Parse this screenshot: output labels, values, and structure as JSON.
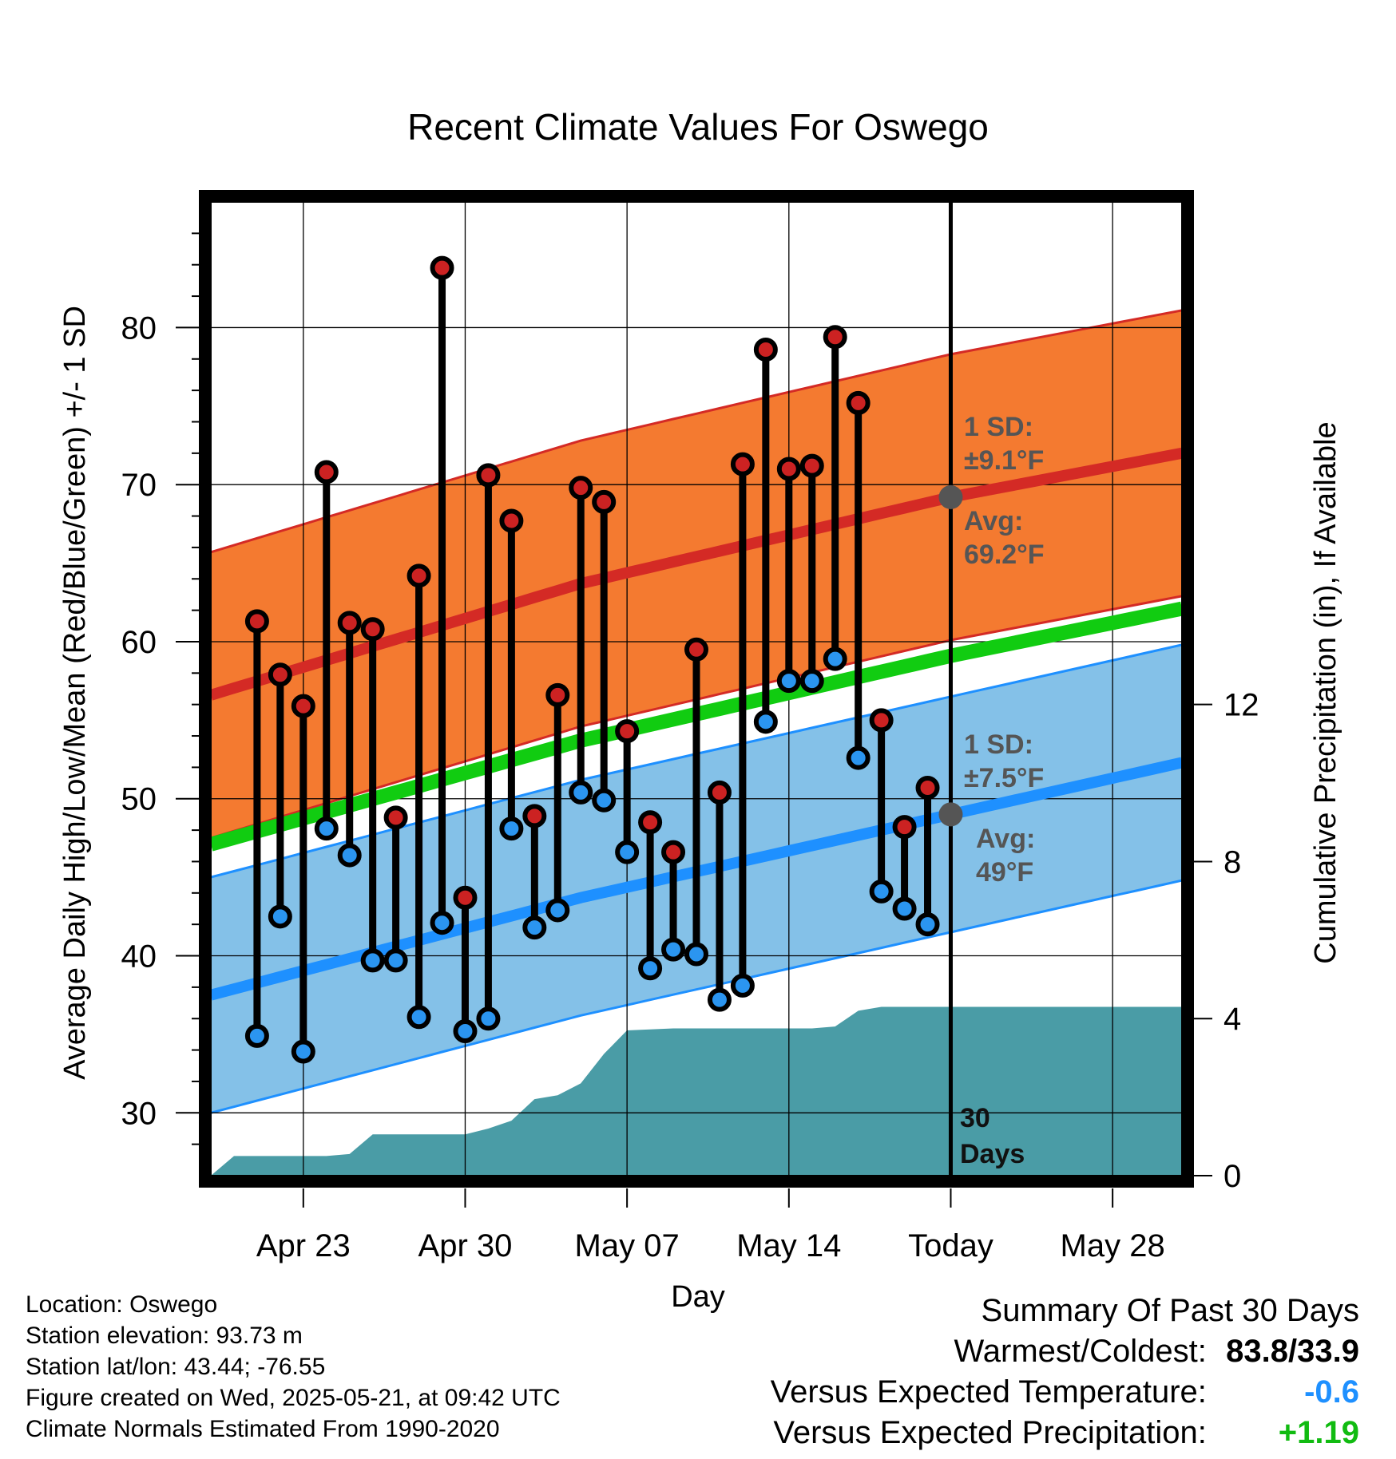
{
  "chart_data": {
    "type": "line",
    "title": "Recent Climate Values For Oswego",
    "xlabel": "Day",
    "ylabel": "Average Daily High/Low/Mean (Red/Blue/Green) +/- 1 SD",
    "y2label": "Cumulative Precipitation (in), If Available",
    "xlim": [
      "2025-04-19",
      "2025-05-31"
    ],
    "ylim": [
      26,
      88
    ],
    "y2lim": [
      0,
      24.8
    ],
    "x_ticks": [
      {
        "date": "2025-04-23",
        "label": "Apr 23"
      },
      {
        "date": "2025-04-30",
        "label": "Apr 30"
      },
      {
        "date": "2025-05-07",
        "label": "May 07"
      },
      {
        "date": "2025-05-14",
        "label": "May 14"
      },
      {
        "date": "2025-05-21",
        "label": "Today"
      },
      {
        "date": "2025-05-28",
        "label": "May 28"
      }
    ],
    "y_ticks": [
      30,
      40,
      50,
      60,
      70,
      80
    ],
    "y2_ticks": [
      0,
      4,
      8,
      12
    ],
    "grid": true,
    "daily": [
      {
        "date": "2025-04-21",
        "high": 61.3,
        "low": 34.9
      },
      {
        "date": "2025-04-22",
        "high": 57.9,
        "low": 42.5
      },
      {
        "date": "2025-04-23",
        "high": 55.9,
        "low": 33.9
      },
      {
        "date": "2025-04-24",
        "high": 70.8,
        "low": 48.1
      },
      {
        "date": "2025-04-25",
        "high": 61.2,
        "low": 46.4
      },
      {
        "date": "2025-04-26",
        "high": 60.8,
        "low": 39.7
      },
      {
        "date": "2025-04-27",
        "high": 48.8,
        "low": 39.7
      },
      {
        "date": "2025-04-28",
        "high": 64.2,
        "low": 36.1
      },
      {
        "date": "2025-04-29",
        "high": 83.8,
        "low": 42.1
      },
      {
        "date": "2025-04-30",
        "high": 43.7,
        "low": 35.2
      },
      {
        "date": "2025-05-01",
        "high": 70.6,
        "low": 36.0
      },
      {
        "date": "2025-05-02",
        "high": 67.7,
        "low": 48.1
      },
      {
        "date": "2025-05-03",
        "high": 48.9,
        "low": 41.8
      },
      {
        "date": "2025-05-04",
        "high": 56.6,
        "low": 42.9
      },
      {
        "date": "2025-05-05",
        "high": 69.8,
        "low": 50.4
      },
      {
        "date": "2025-05-06",
        "high": 68.9,
        "low": 49.9
      },
      {
        "date": "2025-05-07",
        "high": 54.3,
        "low": 46.6
      },
      {
        "date": "2025-05-08",
        "high": 48.5,
        "low": 39.2
      },
      {
        "date": "2025-05-09",
        "high": 46.6,
        "low": 40.4
      },
      {
        "date": "2025-05-10",
        "high": 59.5,
        "low": 40.1
      },
      {
        "date": "2025-05-11",
        "high": 50.4,
        "low": 37.2
      },
      {
        "date": "2025-05-12",
        "high": 71.3,
        "low": 38.1
      },
      {
        "date": "2025-05-13",
        "high": 78.6,
        "low": 54.9
      },
      {
        "date": "2025-05-14",
        "high": 71.0,
        "low": 57.5
      },
      {
        "date": "2025-05-15",
        "high": 71.2,
        "low": 57.5
      },
      {
        "date": "2025-05-16",
        "high": 79.4,
        "low": 58.9
      },
      {
        "date": "2025-05-17",
        "high": 75.2,
        "low": 52.6
      },
      {
        "date": "2025-05-18",
        "high": 55.0,
        "low": 44.1
      },
      {
        "date": "2025-05-19",
        "high": 48.2,
        "low": 43.0
      },
      {
        "date": "2025-05-20",
        "high": 50.7,
        "low": 42.0
      }
    ],
    "normals": [
      {
        "date": "2025-04-19",
        "high_avg": 56.6,
        "low_avg": 37.5,
        "mean_avg": 47.1
      },
      {
        "date": "2025-05-05",
        "high_avg": 63.7,
        "low_avg": 43.7,
        "mean_avg": 53.7
      },
      {
        "date": "2025-05-21",
        "high_avg": 69.2,
        "low_avg": 49.0,
        "mean_avg": 59.1
      },
      {
        "date": "2025-05-31",
        "high_avg": 72.0,
        "low_avg": 52.3,
        "mean_avg": 62.1
      }
    ],
    "high_sd": 9.1,
    "low_sd": 7.5,
    "cumulative_precip": [
      {
        "date": "2025-04-19",
        "inches": 0.0
      },
      {
        "date": "2025-04-20",
        "inches": 0.5
      },
      {
        "date": "2025-04-24",
        "inches": 0.5
      },
      {
        "date": "2025-04-25",
        "inches": 0.55
      },
      {
        "date": "2025-04-26",
        "inches": 1.05
      },
      {
        "date": "2025-04-30",
        "inches": 1.05
      },
      {
        "date": "2025-05-01",
        "inches": 1.2
      },
      {
        "date": "2025-05-02",
        "inches": 1.4
      },
      {
        "date": "2025-05-03",
        "inches": 1.95
      },
      {
        "date": "2025-05-04",
        "inches": 2.05
      },
      {
        "date": "2025-05-05",
        "inches": 2.35
      },
      {
        "date": "2025-05-06",
        "inches": 3.1
      },
      {
        "date": "2025-05-07",
        "inches": 3.7
      },
      {
        "date": "2025-05-09",
        "inches": 3.75
      },
      {
        "date": "2025-05-15",
        "inches": 3.75
      },
      {
        "date": "2025-05-16",
        "inches": 3.8
      },
      {
        "date": "2025-05-17",
        "inches": 4.2
      },
      {
        "date": "2025-05-18",
        "inches": 4.3
      },
      {
        "date": "2025-05-31",
        "inches": 4.3
      }
    ],
    "annotations": {
      "high_sd_l1": "1 SD:",
      "high_sd_l2": "±9.1°F",
      "high_avg_l1": "Avg:",
      "high_avg_l2": "69.2°F",
      "low_sd_l1": "1 SD:",
      "low_sd_l2": "±7.5°F",
      "low_avg_l1": "Avg:",
      "low_avg_l2": "49°F",
      "days_l1": "30",
      "days_l2": "Days"
    },
    "today_date": "2025-05-21",
    "colors": {
      "high_band": "#f47a30",
      "high_line": "#d42a25",
      "low_band": "#84c1e8",
      "low_line": "#1e90ff",
      "mean_line": "#11cc11",
      "precip": "#4a9ca6",
      "high_marker": "#cc2222",
      "low_marker": "#2b95f0",
      "avg_marker": "#555555"
    }
  },
  "footer": {
    "location": "Location: Oswego",
    "elevation": "Station elevation: 93.73 m",
    "latlon": "Station lat/lon: 43.44; -76.55",
    "created": "Figure created on Wed, 2025-05-21, at 09:42 UTC",
    "normals": "Climate Normals Estimated From 1990-2020"
  },
  "summary": {
    "heading": "Summary Of Past 30 Days",
    "warmest_label": "Warmest/Coldest:",
    "warmest_value": "83.8/33.9",
    "temp_label": "Versus Expected Temperature:",
    "temp_value": "-0.6",
    "precip_label": "Versus Expected Precipitation:",
    "precip_value": "+1.19"
  }
}
